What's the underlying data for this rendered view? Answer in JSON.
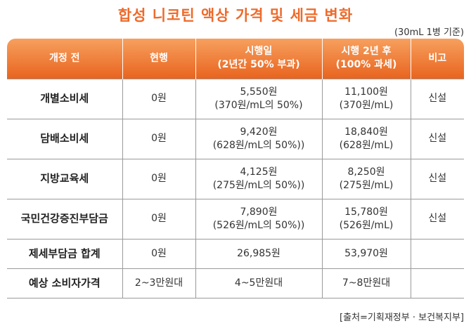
{
  "title": "합성 니코틴 액상 가격 및 세금 변화",
  "unit_note": "(30mL 1병 기준)",
  "table": {
    "headers": [
      {
        "line1": "개정 전",
        "line2": ""
      },
      {
        "line1": "현행",
        "line2": ""
      },
      {
        "line1": "시행일",
        "line2": "(2년간 50% 부과)"
      },
      {
        "line1": "시행 2년 후",
        "line2": "(100% 과세)"
      },
      {
        "line1": "비고",
        "line2": ""
      }
    ],
    "rows": [
      {
        "label": "개별소비세",
        "current": "0원",
        "effective": {
          "line1": "5,550원",
          "line2": "(370원/mL의 50%)"
        },
        "after2y": {
          "line1": "11,100원",
          "line2": "(370원/mL)"
        },
        "note": "신설"
      },
      {
        "label": "담배소비세",
        "current": "0원",
        "effective": {
          "line1": "9,420원",
          "line2": "(628원/mL의 50%))"
        },
        "after2y": {
          "line1": "18,840원",
          "line2": "(628원/mL)"
        },
        "note": "신설"
      },
      {
        "label": "지방교육세",
        "current": "0원",
        "effective": {
          "line1": "4,125원",
          "line2": "(275원/mL의 50%))"
        },
        "after2y": {
          "line1": "8,250원",
          "line2": "(275원/mL)"
        },
        "note": "신설"
      },
      {
        "label": "국민건강증진부담금",
        "current": "0원",
        "effective": {
          "line1": "7,890원",
          "line2": "(526원/mL의 50%))"
        },
        "after2y": {
          "line1": "15,780원",
          "line2": "(526원/mL)"
        },
        "note": "신설"
      },
      {
        "label": "제세부담금 합계",
        "current": "0원",
        "effective": {
          "line1": "26,985원",
          "line2": ""
        },
        "after2y": {
          "line1": "53,970원",
          "line2": ""
        },
        "note": ""
      },
      {
        "label": "예상 소비자가격",
        "current": "2~3만원대",
        "effective": {
          "line1": "4~5만원대",
          "line2": ""
        },
        "after2y": {
          "line1": "7~8만원대",
          "line2": ""
        },
        "note": ""
      }
    ]
  },
  "source": "[출처=기획재정부 · 보건복지부]"
}
